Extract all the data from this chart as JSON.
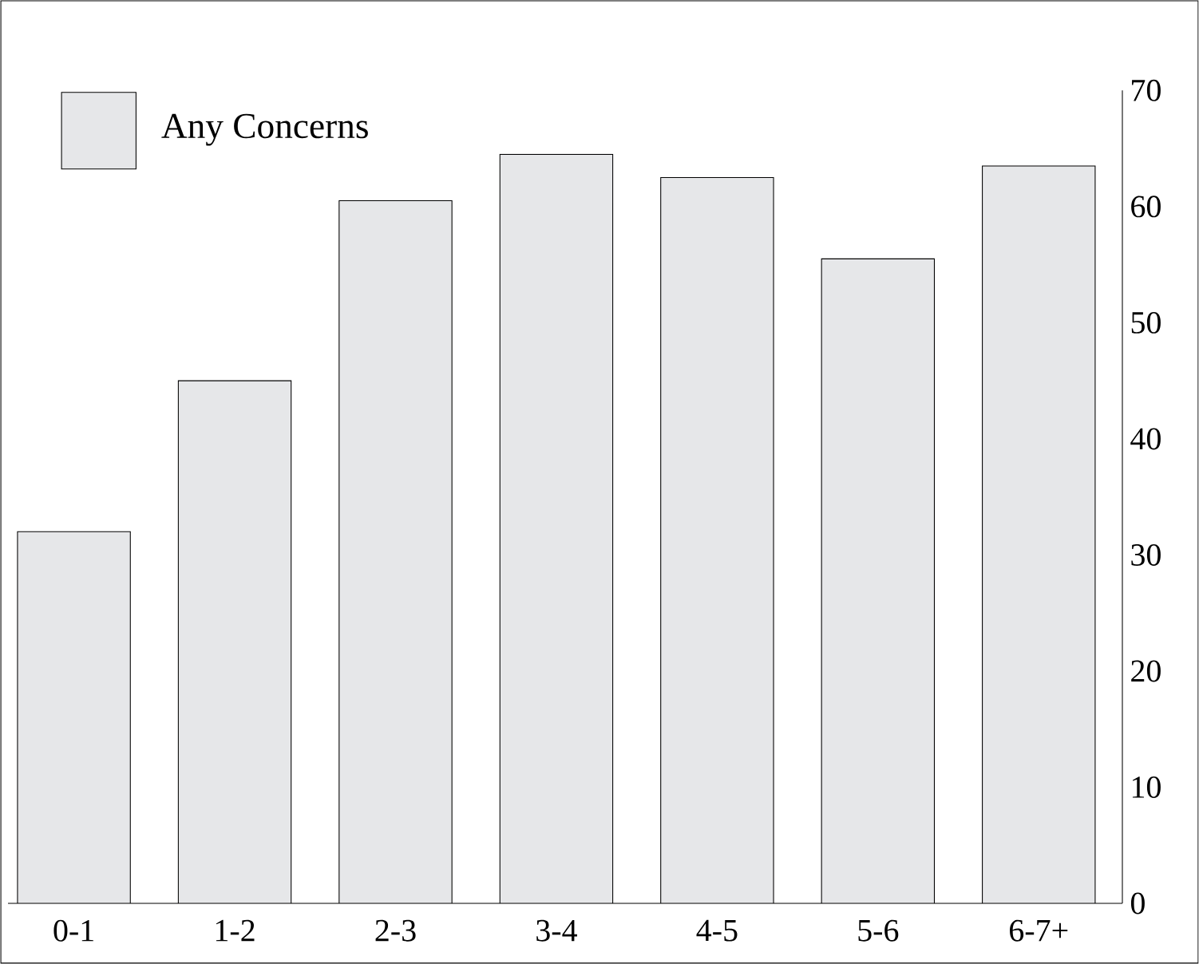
{
  "chart_data": {
    "type": "bar",
    "categories": [
      "0-1",
      "1-2",
      "2-3",
      "3-4",
      "4-5",
      "5-6",
      "6-7+"
    ],
    "series": [
      {
        "name": "Any Concerns",
        "color": "#e6e7e9",
        "values": [
          32,
          45,
          60.5,
          64.5,
          62.5,
          55.5,
          63.5
        ]
      }
    ],
    "ylim": [
      0,
      70
    ],
    "yticks": [
      0,
      10,
      20,
      30,
      40,
      50,
      60,
      70
    ],
    "grid": false,
    "legend": "top left"
  }
}
